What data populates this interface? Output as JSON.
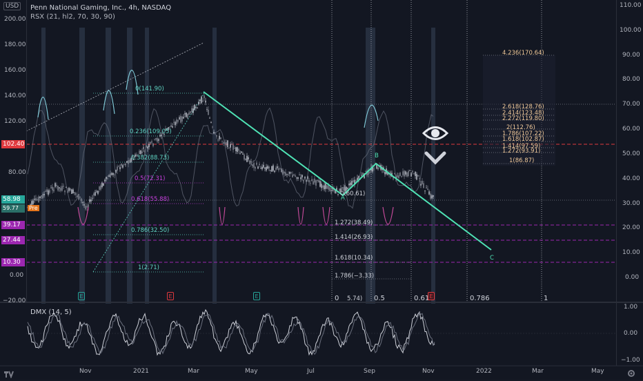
{
  "header": {
    "symbol": "Penn National Gaming, Inc., 4h, NASDAQ",
    "indicator": "RSX (21, hl2, 70, 30, 90)"
  },
  "currency": "USD",
  "left_axis": {
    "ticks": [
      "200.00",
      "180.00",
      "160.00",
      "140.00",
      "120.00",
      "80.00",
      "0.00",
      "−20.00"
    ],
    "price_tags": [
      {
        "value": "102.40",
        "color": "#e0393e"
      },
      {
        "value": "58.98",
        "color": "#26a69a"
      },
      {
        "value": "39.17",
        "color": "#9c27b0"
      },
      {
        "value": "27.44",
        "color": "#9c27b0"
      },
      {
        "value": "10.30",
        "color": "#9c27b0"
      }
    ],
    "small_tag": "Pre",
    "small_value": "59.77"
  },
  "right_axis": {
    "ticks": [
      "110.00",
      "100.00",
      "90.00",
      "80.00",
      "70.00",
      "60.00",
      "50.00",
      "40.00",
      "30.00",
      "20.00",
      "10.00",
      "0.00"
    ],
    "dmx_ticks": [
      "1.00",
      "0.00",
      "−1.00"
    ]
  },
  "fib_left": [
    {
      "text": "0(141.90)",
      "color": "#5fd3c2"
    },
    {
      "text": "0.236(109.05)",
      "color": "#5fd3c2"
    },
    {
      "text": "0.382(88.73)",
      "color": "#5fd3c2"
    },
    {
      "text": "0.5(72.31)",
      "color": "#c63fdc"
    },
    {
      "text": "0.618(55.88)",
      "color": "#c63fdc"
    },
    {
      "text": "0.786(32.50)",
      "color": "#5fd3c2"
    },
    {
      "text": "1(2.71)",
      "color": "#5fd3c2"
    }
  ],
  "fib_ext_mid": [
    {
      "text": "0(60.61)"
    },
    {
      "text": "1.272(38.49)"
    },
    {
      "text": "1.414(26.93)"
    },
    {
      "text": "1.618(10.34)"
    },
    {
      "text": "1.786(−3.33)"
    }
  ],
  "fib_ext_right": [
    {
      "text": "4.236(170.64)"
    },
    {
      "text": "2.618(128.76)"
    },
    {
      "text": "2.414(123.48)"
    },
    {
      "text": "2.272(119.80)"
    },
    {
      "text": "2(112.76)"
    },
    {
      "text": "1.786(107.22)"
    },
    {
      "text": "1.618(102.87)"
    },
    {
      "text": "1.414(97.59)"
    },
    {
      "text": "1.272(93.91)"
    },
    {
      "text": "1(86.87)"
    }
  ],
  "time_fib": [
    "0",
    "0.5",
    "0.618",
    "0.786",
    "1"
  ],
  "wave_labels": [
    "A",
    "B",
    "C"
  ],
  "time_fib_extra": "5.74)",
  "earnings_markers": [
    "E",
    "E",
    "E",
    "E"
  ],
  "dmx": {
    "title": "DMX (14, 5)"
  },
  "x_axis": [
    "Nov",
    "2021",
    "Mar",
    "May",
    "Jul",
    "Sep",
    "Nov",
    "2022",
    "Mar",
    "May"
  ],
  "colors": {
    "wave": "#4fe3b5",
    "bg": "#131722",
    "grid": "#2a2e39",
    "fib_teal": "#5fd3c2",
    "fib_magenta": "#c63fdc",
    "red_line": "#e0393e"
  },
  "icons": [
    "eye-icon",
    "chevron-down-icon",
    "tradingview-logo-icon",
    "settings-icon"
  ]
}
